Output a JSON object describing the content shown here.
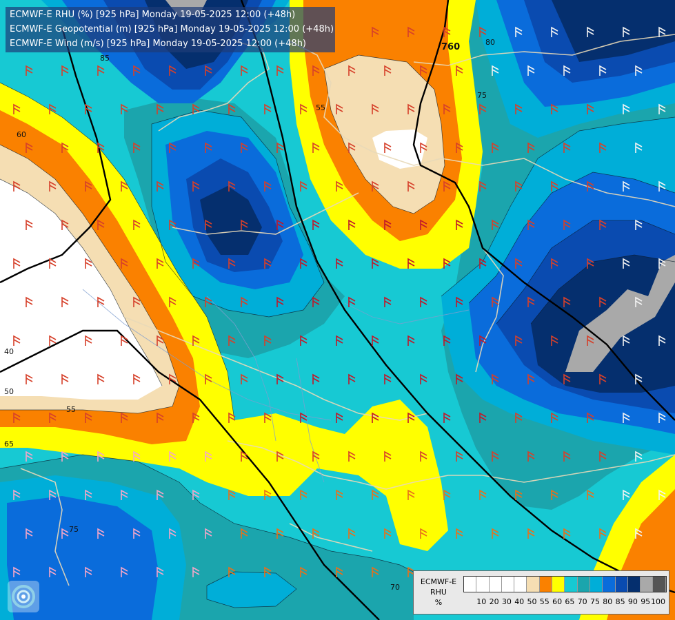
{
  "title_lines": [
    "ECMWF-E RHU (%) [925 hPa] Monday 19-05-2025 12:00 (+48h)",
    "ECMWF-E Geopotential (m) [925 hPa] Monday 19-05-2025 12:00 (+48h)",
    "ECMWF-E Wind (m/s) [925 hPa] Monday 19-05-2025 12:00 (+48h)"
  ],
  "legend": {
    "title": [
      "ECMWF-E",
      "RHU",
      "%"
    ],
    "tick_labels": [
      "10",
      "20",
      "30",
      "40",
      "50",
      "55",
      "60",
      "65",
      "70",
      "75",
      "80",
      "85",
      "90",
      "95",
      "100"
    ],
    "colors": [
      "#ffffff",
      "#ffffff",
      "#ffffff",
      "#ffffff",
      "#ffffff",
      "#f5deb3",
      "#fa8100",
      "#ffff00",
      "#17c9d3",
      "#1ba5ad",
      "#00aed8",
      "#0a6cdb",
      "#0a4bb0",
      "#052f6e",
      "#a9a9a9",
      "#555555"
    ]
  },
  "contour_labels": {
    "rhu": [
      "85",
      "80",
      "75",
      "60",
      "55",
      "65",
      "40",
      "50",
      "75",
      "70",
      "55"
    ],
    "geopotential": [
      "760"
    ]
  },
  "logo": "ecmwf-logo-icon"
}
